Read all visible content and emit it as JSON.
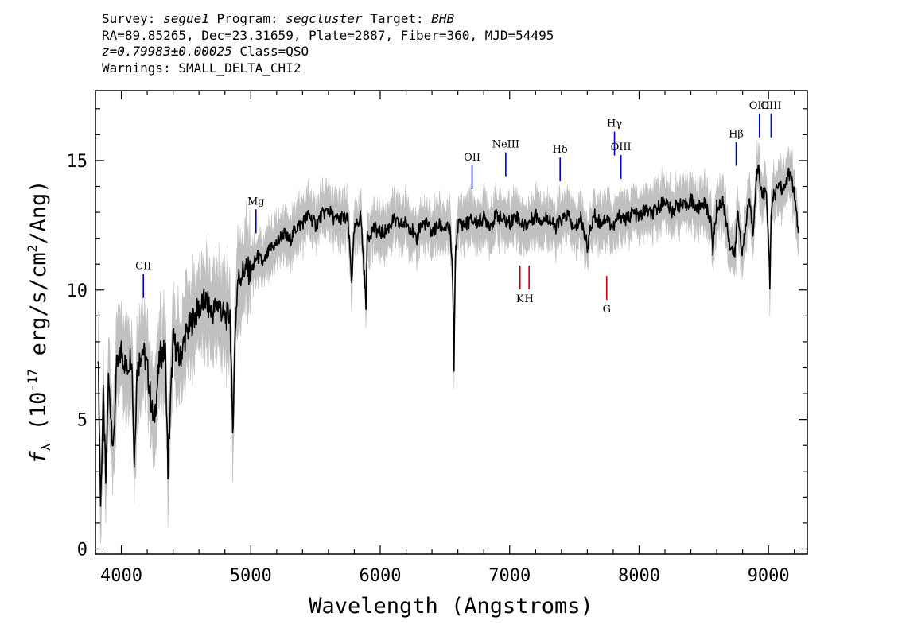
{
  "header": {
    "survey_label": "Survey:",
    "survey": "segue1",
    "program_label": "Program:",
    "program": "segcluster",
    "target_label": "Target:",
    "target": "BHB",
    "coords": "RA=89.85265, Dec=23.31659, Plate=2887, Fiber=360, MJD=54495",
    "redshift": "z=0.79983±0.00025",
    "class": "Class=QSO",
    "warnings": "Warnings: SMALL_DELTA_CHI2"
  },
  "chart_data": {
    "type": "line",
    "xlabel": "Wavelength (Angstroms)",
    "ylabel": "f_λ (10^-17 erg/s/cm^2/Ang)",
    "xlim": [
      3800,
      9300
    ],
    "ylim": [
      -0.2,
      17.7
    ],
    "xticks": [
      4000,
      5000,
      6000,
      7000,
      8000,
      9000
    ],
    "yticks": [
      0,
      5,
      10,
      15
    ],
    "series": [
      {
        "role": "flux",
        "color": "#000000",
        "x": [
          3820,
          3840,
          3860,
          3880,
          3900,
          3920,
          3940,
          3960,
          3980,
          4000,
          4040,
          4080,
          4100,
          4120,
          4160,
          4200,
          4250,
          4300,
          4340,
          4360,
          4400,
          4450,
          4500,
          4550,
          4600,
          4650,
          4700,
          4750,
          4800,
          4840,
          4860,
          4880,
          4900,
          4950,
          5000,
          5050,
          5100,
          5150,
          5200,
          5250,
          5300,
          5350,
          5400,
          5450,
          5500,
          5550,
          5600,
          5650,
          5700,
          5750,
          5780,
          5800,
          5850,
          5890,
          5900,
          5950,
          6000,
          6050,
          6100,
          6150,
          6200,
          6250,
          6280,
          6300,
          6350,
          6400,
          6450,
          6500,
          6540,
          6560,
          6570,
          6580,
          6600,
          6620,
          6650,
          6700,
          6750,
          6800,
          6850,
          6900,
          6950,
          7000,
          7050,
          7100,
          7150,
          7200,
          7250,
          7300,
          7350,
          7400,
          7450,
          7500,
          7550,
          7600,
          7650,
          7700,
          7750,
          7800,
          7850,
          7900,
          7950,
          8000,
          8050,
          8100,
          8150,
          8200,
          8250,
          8300,
          8350,
          8400,
          8450,
          8500,
          8550,
          8570,
          8600,
          8650,
          8700,
          8740,
          8760,
          8800,
          8850,
          8880,
          8900,
          8920,
          8950,
          8980,
          9000,
          9010,
          9020,
          9040,
          9080,
          9120,
          9150,
          9180,
          9200,
          9230
        ],
        "y": [
          7.8,
          1.7,
          5.8,
          2.6,
          6.5,
          5.2,
          3.8,
          6.9,
          7.2,
          7.7,
          6.9,
          7.6,
          3.3,
          6.8,
          7.8,
          7.0,
          4.8,
          7.5,
          7.6,
          3.1,
          8.1,
          7.3,
          8.3,
          8.8,
          9.3,
          9.6,
          9.1,
          9.5,
          8.9,
          9.1,
          4.5,
          8.5,
          10.4,
          10.8,
          10.7,
          11.3,
          11.0,
          11.6,
          11.8,
          12.2,
          11.9,
          12.4,
          12.6,
          12.9,
          12.5,
          12.9,
          13.1,
          12.7,
          12.8,
          12.7,
          10.4,
          12.3,
          12.9,
          9.5,
          12.0,
          12.4,
          12.2,
          12.3,
          12.7,
          12.5,
          12.6,
          12.3,
          11.8,
          12.4,
          12.6,
          12.2,
          12.5,
          12.4,
          12.3,
          10.5,
          6.9,
          11.2,
          12.5,
          12.6,
          12.5,
          12.7,
          12.6,
          12.8,
          12.5,
          12.9,
          12.7,
          12.6,
          12.9,
          12.5,
          12.6,
          12.9,
          12.7,
          12.8,
          12.4,
          12.7,
          12.9,
          12.3,
          12.8,
          11.7,
          12.9,
          12.6,
          12.8,
          12.4,
          12.9,
          12.7,
          13.0,
          12.8,
          13.1,
          12.9,
          13.2,
          13.5,
          13.0,
          13.3,
          13.2,
          13.5,
          13.1,
          13.4,
          12.8,
          11.6,
          13.2,
          13.4,
          11.8,
          11.3,
          13.0,
          11.4,
          13.6,
          12.2,
          14.0,
          14.8,
          13.7,
          13.8,
          12.0,
          10.3,
          12.9,
          13.6,
          14.1,
          13.8,
          14.5,
          14.3,
          13.6,
          12.2
        ]
      },
      {
        "role": "uncertainty band",
        "color": "#c0c0c0"
      }
    ],
    "line_labels": [
      {
        "name": "CII",
        "wavelength": 4170,
        "color": "#0000cc",
        "position": "above",
        "text_y": 10.8
      },
      {
        "name": "Mg",
        "wavelength": 5040,
        "color": "#0000cc",
        "position": "above",
        "text_y": 13.3
      },
      {
        "name": "OII",
        "wavelength": 6710,
        "color": "#0000cc",
        "position": "above",
        "text_y": 15.0
      },
      {
        "name": "NeIII",
        "wavelength": 6970,
        "color": "#0000cc",
        "position": "above",
        "text_y": 15.5
      },
      {
        "name": "Hδ",
        "wavelength": 7390,
        "color": "#0000cc",
        "position": "above",
        "text_y": 15.3
      },
      {
        "name": "Hγ",
        "wavelength": 7810,
        "color": "#0000cc",
        "position": "above",
        "text_y": 16.3
      },
      {
        "name": "OIII",
        "wavelength": 7860,
        "color": "#0000cc",
        "position": "above",
        "text_y": 15.4
      },
      {
        "name": "Hβ",
        "wavelength": 8750,
        "color": "#0000cc",
        "position": "above",
        "text_y": 15.9
      },
      {
        "name": "OIII",
        "wavelength": 8930,
        "color": "#0000cc",
        "position": "above",
        "text_y": 17.0
      },
      {
        "name": "OIII",
        "wavelength": 9020,
        "color": "#0000cc",
        "position": "above",
        "text_y": 17.0
      },
      {
        "name": "K",
        "wavelength": 7080,
        "color": "#cc0000",
        "position": "below",
        "text_y": 9.9
      },
      {
        "name": "H",
        "wavelength": 7150,
        "color": "#cc0000",
        "position": "below",
        "text_y": 9.9
      },
      {
        "name": "G",
        "wavelength": 7750,
        "color": "#cc0000",
        "position": "below",
        "text_y": 9.5
      }
    ]
  }
}
